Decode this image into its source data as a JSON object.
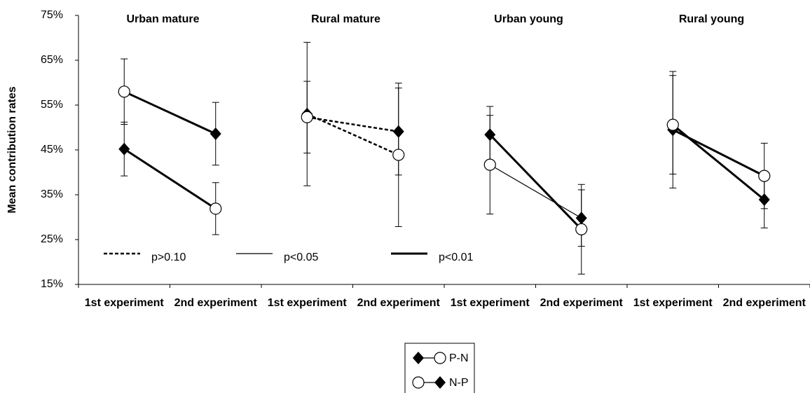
{
  "chart_data": {
    "type": "line",
    "y_label": "Mean contribution rates",
    "groups": [
      "Urban mature",
      "Rural mature",
      "Urban young",
      "Rural young"
    ],
    "categories": [
      "1st experiment",
      "2nd experiment",
      "1st experiment",
      "2nd experiment",
      "1st experiment",
      "2nd experiment",
      "1st experiment",
      "2nd experiment"
    ],
    "ylim": [
      15,
      75
    ],
    "yticks": [
      {
        "value": 15,
        "label": "15%"
      },
      {
        "value": 25,
        "label": "25%"
      },
      {
        "value": 35,
        "label": "35%"
      },
      {
        "value": 45,
        "label": "45%"
      },
      {
        "value": 55,
        "label": "55%"
      },
      {
        "value": 65,
        "label": "65%"
      },
      {
        "value": 75,
        "label": "75%"
      }
    ],
    "line_key": [
      {
        "label": "p>0.10",
        "style": "dashed"
      },
      {
        "label": "p<0.05",
        "style": "thin"
      },
      {
        "label": "p<0.01",
        "style": "thick"
      }
    ],
    "series": [
      {
        "name": "P-N",
        "color": "#000000",
        "markers": [
          "diamond",
          "circle"
        ],
        "values": [
          45.2,
          31.9,
          53.0,
          43.9,
          48.4,
          27.3,
          49.5,
          39.2
        ],
        "errors": [
          6,
          5.8,
          16,
          16,
          6.3,
          10,
          13,
          7.3
        ],
        "line_styles": [
          2,
          0,
          2,
          2
        ]
      },
      {
        "name": "N-P",
        "color": "#000000",
        "markers": [
          "circle",
          "diamond"
        ],
        "values": [
          58.0,
          48.6,
          52.3,
          49.1,
          41.7,
          29.8,
          50.6,
          33.9
        ],
        "errors": [
          7.3,
          7,
          8,
          9.7,
          11,
          6.3,
          11,
          6.3
        ],
        "line_styles": [
          2,
          0,
          1,
          2
        ]
      }
    ]
  }
}
